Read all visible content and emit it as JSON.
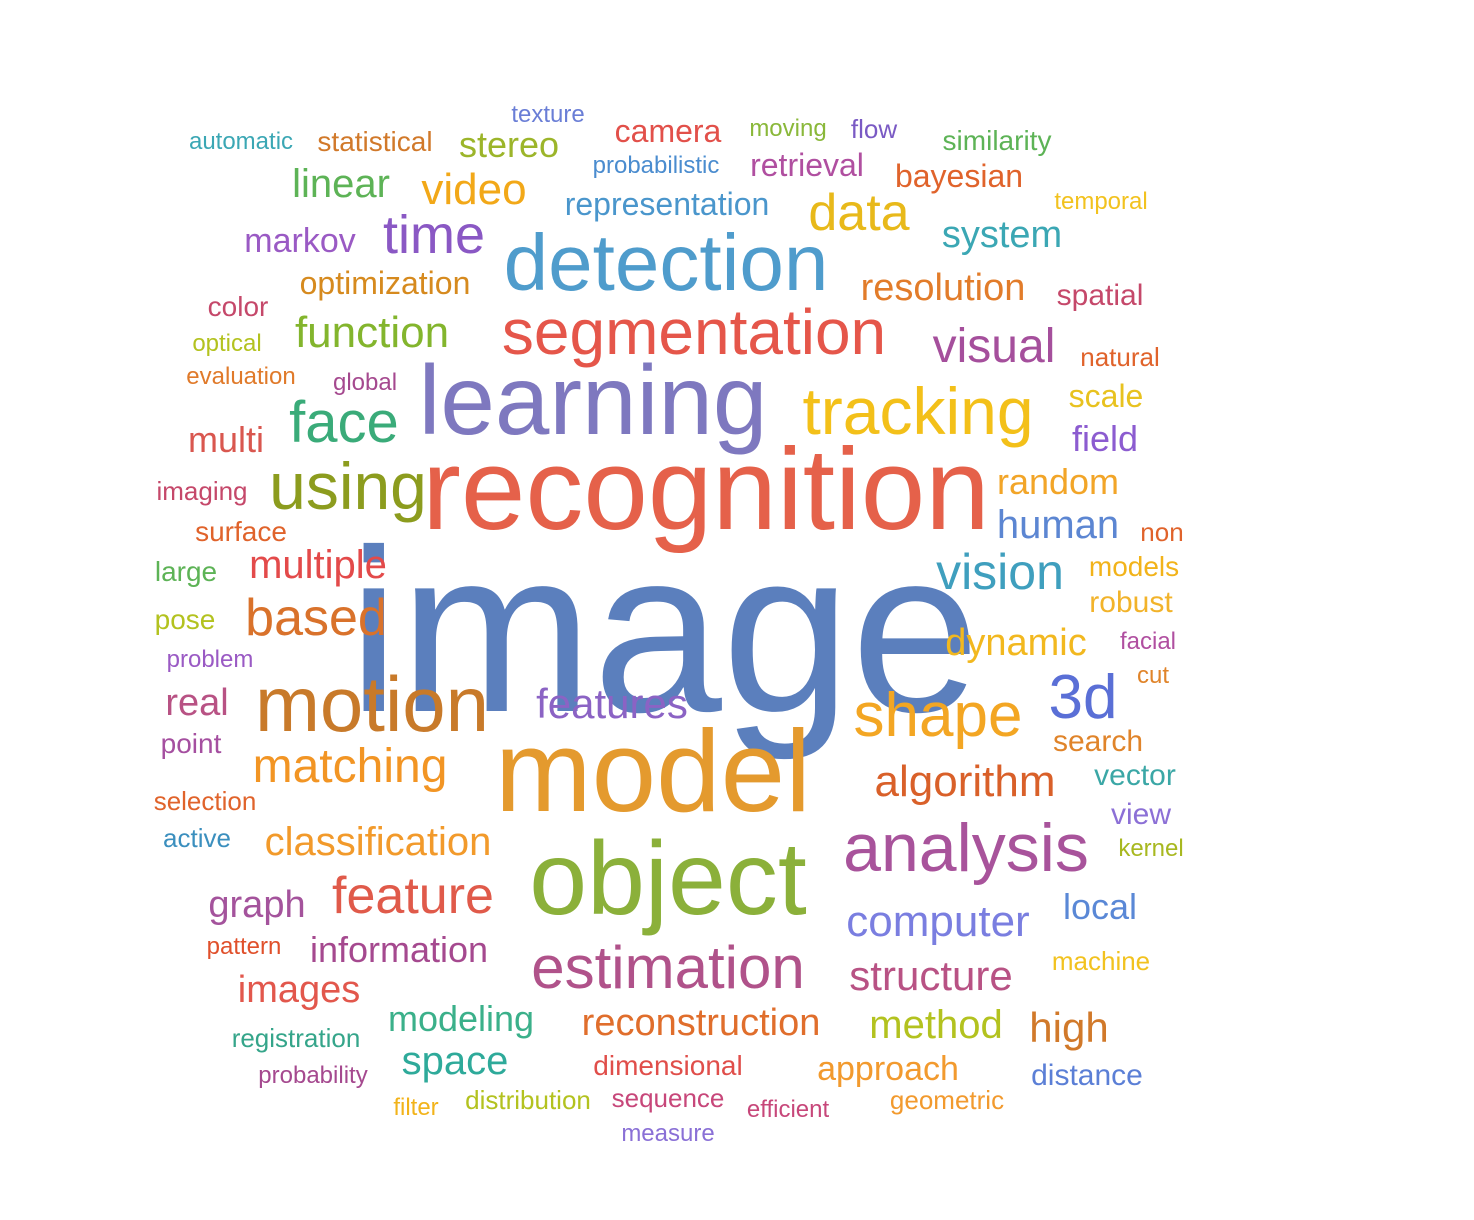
{
  "words": [
    {
      "text": "image",
      "color": "#5b7fbd"
    },
    {
      "text": "recognition",
      "color": "#e5614a"
    },
    {
      "text": "model",
      "color": "#e49a2e"
    },
    {
      "text": "learning",
      "color": "#7e78bf"
    },
    {
      "text": "object",
      "color": "#8bb03a"
    },
    {
      "text": "detection",
      "color": "#4f9ccc"
    },
    {
      "text": "segmentation",
      "color": "#e5564a"
    },
    {
      "text": "tracking",
      "color": "#f3c019"
    },
    {
      "text": "motion",
      "color": "#c87a2a"
    },
    {
      "text": "analysis",
      "color": "#a8539b"
    },
    {
      "text": "using",
      "color": "#8c9c1e"
    },
    {
      "text": "estimation",
      "color": "#b0528a"
    },
    {
      "text": "shape",
      "color": "#f3a623"
    },
    {
      "text": "face",
      "color": "#3aab79"
    },
    {
      "text": "time",
      "color": "#8a58c4"
    },
    {
      "text": "3d",
      "color": "#5a6fd6"
    },
    {
      "text": "feature",
      "color": "#e05a4a"
    },
    {
      "text": "vision",
      "color": "#3f9fbe"
    },
    {
      "text": "based",
      "color": "#d9722b"
    },
    {
      "text": "data",
      "color": "#e8b91a"
    },
    {
      "text": "matching",
      "color": "#f29524"
    },
    {
      "text": "computer",
      "color": "#7a7ee0"
    },
    {
      "text": "visual",
      "color": "#a54f9c"
    },
    {
      "text": "video",
      "color": "#f2a818"
    },
    {
      "text": "structure",
      "color": "#b85284"
    },
    {
      "text": "features",
      "color": "#8b63c4"
    },
    {
      "text": "classification",
      "color": "#f29a2b"
    },
    {
      "text": "function",
      "color": "#83b52d"
    },
    {
      "text": "algorithm",
      "color": "#d96029"
    },
    {
      "text": "reconstruction",
      "color": "#e06e2c"
    },
    {
      "text": "multiple",
      "color": "#e34a4a"
    },
    {
      "text": "human",
      "color": "#5c86d2"
    },
    {
      "text": "method",
      "color": "#b3c21f"
    },
    {
      "text": "high",
      "color": "#d1792a"
    },
    {
      "text": "linear",
      "color": "#5db356"
    },
    {
      "text": "dynamic",
      "color": "#f2b81f"
    },
    {
      "text": "space",
      "color": "#2eaa9a"
    },
    {
      "text": "information",
      "color": "#a5498f"
    },
    {
      "text": "images",
      "color": "#e2574c"
    },
    {
      "text": "resolution",
      "color": "#e27c2a"
    },
    {
      "text": "system",
      "color": "#3ba7b4"
    },
    {
      "text": "graph",
      "color": "#a4539c"
    },
    {
      "text": "real",
      "color": "#b85284"
    },
    {
      "text": "stereo",
      "color": "#9cb52a"
    },
    {
      "text": "modeling",
      "color": "#3bb08a"
    },
    {
      "text": "multi",
      "color": "#d9574f"
    },
    {
      "text": "field",
      "color": "#8c5cd0"
    },
    {
      "text": "local",
      "color": "#5a88d6"
    },
    {
      "text": "random",
      "color": "#f2a528"
    },
    {
      "text": "markov",
      "color": "#9a5ac4"
    },
    {
      "text": "representation",
      "color": "#4a96cc"
    },
    {
      "text": "approach",
      "color": "#f29a2e"
    },
    {
      "text": "optimization",
      "color": "#d68a1e"
    },
    {
      "text": "retrieval",
      "color": "#b04fa0"
    },
    {
      "text": "camera",
      "color": "#e2504a"
    },
    {
      "text": "scale",
      "color": "#e8c21f"
    },
    {
      "text": "bayesian",
      "color": "#e0632b"
    },
    {
      "text": "spatial",
      "color": "#c5486a"
    },
    {
      "text": "distance",
      "color": "#5b7fd6"
    },
    {
      "text": "dimensional",
      "color": "#e04e4a"
    },
    {
      "text": "vector",
      "color": "#3ba7a6"
    },
    {
      "text": "statistical",
      "color": "#d1792a"
    },
    {
      "text": "search",
      "color": "#e0842a"
    },
    {
      "text": "similarity",
      "color": "#5db356"
    },
    {
      "text": "robust",
      "color": "#f2b32a"
    },
    {
      "text": "view",
      "color": "#8c70d6"
    },
    {
      "text": "sequence",
      "color": "#c7477a"
    },
    {
      "text": "flow",
      "color": "#7a5ac4"
    },
    {
      "text": "texture",
      "color": "#6a7ed6"
    },
    {
      "text": "moving",
      "color": "#8ab83a"
    },
    {
      "text": "probabilistic",
      "color": "#4a8ccf"
    },
    {
      "text": "models",
      "color": "#f2b31a"
    },
    {
      "text": "color",
      "color": "#c5486a"
    },
    {
      "text": "surface",
      "color": "#e0632b"
    },
    {
      "text": "machine",
      "color": "#f2c21f"
    },
    {
      "text": "registration",
      "color": "#35a58a"
    },
    {
      "text": "large",
      "color": "#5db356"
    },
    {
      "text": "geometric",
      "color": "#f29a2e"
    },
    {
      "text": "point",
      "color": "#a54fa0"
    },
    {
      "text": "automatic",
      "color": "#3ba7b4"
    },
    {
      "text": "selection",
      "color": "#e0632b"
    },
    {
      "text": "probability",
      "color": "#a5498f"
    },
    {
      "text": "distribution",
      "color": "#b3c21f"
    },
    {
      "text": "evaluation",
      "color": "#e07a2a"
    },
    {
      "text": "active",
      "color": "#3b8fbe"
    },
    {
      "text": "pose",
      "color": "#b3c21f"
    },
    {
      "text": "natural",
      "color": "#e0632b"
    },
    {
      "text": "imaging",
      "color": "#c5486a"
    },
    {
      "text": "efficient",
      "color": "#c7477a"
    },
    {
      "text": "facial",
      "color": "#b04fa0"
    },
    {
      "text": "problem",
      "color": "#9a5ac4"
    },
    {
      "text": "global",
      "color": "#a5498f"
    },
    {
      "text": "measure",
      "color": "#8a70d6"
    },
    {
      "text": "kernel",
      "color": "#a8b820"
    },
    {
      "text": "temporal",
      "color": "#f2c21f"
    },
    {
      "text": "optical",
      "color": "#b3c21f"
    },
    {
      "text": "pattern",
      "color": "#e0502b"
    },
    {
      "text": "non",
      "color": "#e0632b"
    },
    {
      "text": "filter",
      "color": "#f2b31a"
    },
    {
      "text": "cut",
      "color": "#e0842a"
    }
  ]
}
